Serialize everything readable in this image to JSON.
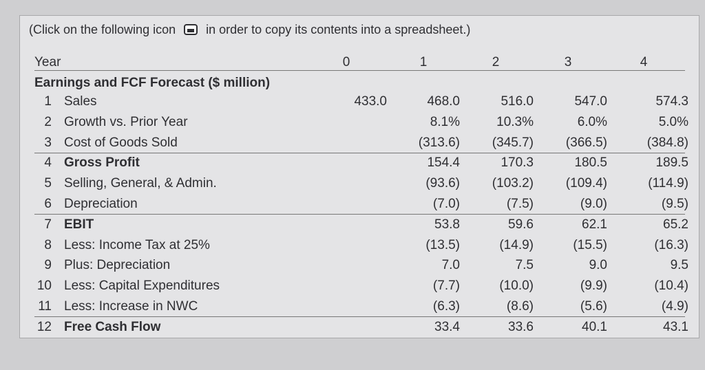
{
  "note": {
    "before": "(Click on the following icon",
    "after": "in order to copy its contents into a spreadsheet.)"
  },
  "table": {
    "header": [
      "Year",
      "0",
      "1",
      "2",
      "3",
      "4"
    ],
    "section": "Earnings and FCF Forecast ($ million)",
    "rows": [
      {
        "num": "1",
        "label": "Sales",
        "year0": "433.0",
        "values": [
          "468.0",
          "516.0",
          "547.0",
          "574.3"
        ]
      },
      {
        "num": "2",
        "label": "Growth vs. Prior Year",
        "values": [
          "8.1%",
          "10.3%",
          "6.0%",
          "5.0%"
        ]
      },
      {
        "num": "3",
        "label": "Cost of Goods Sold",
        "values": [
          "(313.6)",
          "(345.7)",
          "(366.5)",
          "(384.8)"
        ]
      },
      {
        "num": "4",
        "label": "Gross Profit",
        "bold": true,
        "values": [
          "154.4",
          "170.3",
          "180.5",
          "189.5"
        ]
      },
      {
        "num": "5",
        "label": "Selling, General, & Admin.",
        "values": [
          "(93.6)",
          "(103.2)",
          "(109.4)",
          "(114.9)"
        ]
      },
      {
        "num": "6",
        "label": "Depreciation",
        "values": [
          "(7.0)",
          "(7.5)",
          "(9.0)",
          "(9.5)"
        ]
      },
      {
        "num": "7",
        "label": "EBIT",
        "bold": true,
        "values": [
          "53.8",
          "59.6",
          "62.1",
          "65.2"
        ]
      },
      {
        "num": "8",
        "label": "Less: Income Tax at 25%",
        "values": [
          "(13.5)",
          "(14.9)",
          "(15.5)",
          "(16.3)"
        ]
      },
      {
        "num": "9",
        "label": "Plus: Depreciation",
        "values": [
          "7.0",
          "7.5",
          "9.0",
          "9.5"
        ]
      },
      {
        "num": "10",
        "label": "Less: Capital Expenditures",
        "values": [
          "(7.7)",
          "(10.0)",
          "(9.9)",
          "(10.4)"
        ]
      },
      {
        "num": "11",
        "label": "Less: Increase in NWC",
        "values": [
          "(6.3)",
          "(8.6)",
          "(5.6)",
          "(4.9)"
        ]
      },
      {
        "num": "12",
        "label": "Free Cash Flow",
        "bold": true,
        "values": [
          "33.4",
          "33.6",
          "40.1",
          "43.1"
        ]
      }
    ]
  }
}
